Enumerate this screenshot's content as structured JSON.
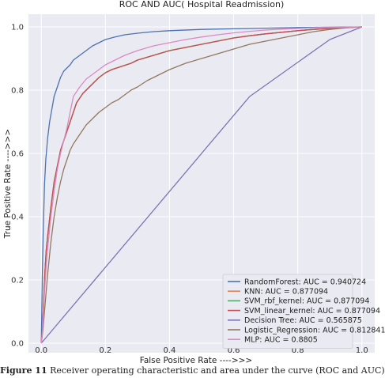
{
  "caption": {
    "prefix": "Figure 11",
    "text": "Receiver operating characteristic and area under the curve (ROC and AUC)"
  },
  "chart_data": {
    "type": "line",
    "title": "ROC AND AUC( Hospital Readmission)",
    "xlabel": "False Positive Rate ---->>>",
    "ylabel": "True Positive Rate ---->>>",
    "xlim": [
      -0.04,
      1.04
    ],
    "ylim": [
      -0.03,
      1.04
    ],
    "xticks": [
      "0.0",
      "0.2",
      "0.4",
      "0.6",
      "0.8",
      "1.0"
    ],
    "yticks": [
      "0.0",
      "0.2",
      "0.4",
      "0.6",
      "0.8",
      "1.0"
    ],
    "grid": true,
    "legend_position": "lower-right",
    "series": [
      {
        "name": "RandomForest: AUC = 0.940724",
        "color": "#4c72b0",
        "x": [
          0,
          0.003,
          0.006,
          0.01,
          0.014,
          0.02,
          0.026,
          0.033,
          0.04,
          0.05,
          0.06,
          0.07,
          0.08,
          0.09,
          0.1,
          0.12,
          0.14,
          0.16,
          0.18,
          0.2,
          0.23,
          0.26,
          0.3,
          0.35,
          0.4,
          0.5,
          0.6,
          0.7,
          0.8,
          0.9,
          1.0
        ],
        "y": [
          0,
          0.2,
          0.35,
          0.5,
          0.58,
          0.65,
          0.7,
          0.74,
          0.78,
          0.81,
          0.84,
          0.86,
          0.87,
          0.88,
          0.895,
          0.91,
          0.925,
          0.94,
          0.95,
          0.96,
          0.968,
          0.975,
          0.98,
          0.985,
          0.988,
          0.992,
          0.994,
          0.996,
          0.998,
          0.999,
          1.0
        ]
      },
      {
        "name": "KNN: AUC = 0.877094",
        "color": "#dd8452",
        "x": [
          0,
          0.003,
          0.006,
          0.01,
          0.015,
          0.02,
          0.03,
          0.04,
          0.05,
          0.06,
          0.07,
          0.08,
          0.09,
          0.1,
          0.11,
          0.13,
          0.15,
          0.18,
          0.2,
          0.22,
          0.25,
          0.28,
          0.3,
          0.35,
          0.4,
          0.45,
          0.5,
          0.55,
          0.6,
          0.65,
          0.7,
          0.75,
          0.8,
          0.85,
          0.9,
          0.95,
          1.0
        ],
        "y": [
          0,
          0.03,
          0.1,
          0.2,
          0.29,
          0.34,
          0.43,
          0.51,
          0.56,
          0.61,
          0.64,
          0.67,
          0.7,
          0.73,
          0.76,
          0.79,
          0.81,
          0.84,
          0.855,
          0.865,
          0.875,
          0.885,
          0.895,
          0.91,
          0.925,
          0.935,
          0.945,
          0.955,
          0.965,
          0.972,
          0.978,
          0.983,
          0.988,
          0.992,
          0.995,
          0.998,
          1.0
        ]
      },
      {
        "name": "SVM_rbf_kernel: AUC = 0.877094",
        "color": "#55a868",
        "x": [
          0,
          0.003,
          0.006,
          0.01,
          0.015,
          0.02,
          0.03,
          0.04,
          0.05,
          0.06,
          0.07,
          0.08,
          0.09,
          0.1,
          0.11,
          0.13,
          0.15,
          0.18,
          0.2,
          0.22,
          0.25,
          0.28,
          0.3,
          0.35,
          0.4,
          0.45,
          0.5,
          0.55,
          0.6,
          0.65,
          0.7,
          0.75,
          0.8,
          0.85,
          0.9,
          0.95,
          1.0
        ],
        "y": [
          0,
          0.03,
          0.1,
          0.2,
          0.29,
          0.34,
          0.43,
          0.51,
          0.56,
          0.61,
          0.64,
          0.67,
          0.7,
          0.73,
          0.76,
          0.79,
          0.81,
          0.84,
          0.855,
          0.865,
          0.875,
          0.885,
          0.895,
          0.91,
          0.925,
          0.935,
          0.945,
          0.955,
          0.965,
          0.972,
          0.978,
          0.983,
          0.988,
          0.992,
          0.995,
          0.998,
          1.0
        ]
      },
      {
        "name": "SVM_linear_kernel: AUC = 0.877094",
        "color": "#c44e52",
        "x": [
          0,
          0.003,
          0.006,
          0.01,
          0.015,
          0.02,
          0.03,
          0.04,
          0.05,
          0.06,
          0.07,
          0.08,
          0.09,
          0.1,
          0.11,
          0.13,
          0.15,
          0.18,
          0.2,
          0.22,
          0.25,
          0.28,
          0.3,
          0.35,
          0.4,
          0.45,
          0.5,
          0.55,
          0.6,
          0.65,
          0.7,
          0.75,
          0.8,
          0.85,
          0.9,
          0.95,
          1.0
        ],
        "y": [
          0,
          0.03,
          0.1,
          0.2,
          0.29,
          0.34,
          0.43,
          0.51,
          0.56,
          0.61,
          0.64,
          0.67,
          0.7,
          0.73,
          0.76,
          0.79,
          0.81,
          0.84,
          0.855,
          0.865,
          0.875,
          0.885,
          0.895,
          0.91,
          0.925,
          0.935,
          0.945,
          0.955,
          0.965,
          0.972,
          0.978,
          0.983,
          0.988,
          0.992,
          0.995,
          0.998,
          1.0
        ]
      },
      {
        "name": "Decision Tree: AUC = 0.565875",
        "color": "#8172b3",
        "x": [
          0,
          0.65,
          0.9,
          0.95,
          1.0
        ],
        "y": [
          0,
          0.78,
          0.96,
          0.98,
          1.0
        ]
      },
      {
        "name": "Logistic_Regression: AUC = 0.812841",
        "color": "#937860",
        "x": [
          0,
          0.005,
          0.01,
          0.02,
          0.03,
          0.04,
          0.05,
          0.06,
          0.07,
          0.08,
          0.09,
          0.1,
          0.12,
          0.14,
          0.16,
          0.18,
          0.2,
          0.22,
          0.24,
          0.26,
          0.28,
          0.3,
          0.33,
          0.36,
          0.4,
          0.45,
          0.5,
          0.55,
          0.6,
          0.65,
          0.7,
          0.75,
          0.8,
          0.85,
          0.9,
          0.95,
          1.0
        ],
        "y": [
          0,
          0.04,
          0.1,
          0.22,
          0.32,
          0.4,
          0.46,
          0.51,
          0.55,
          0.58,
          0.61,
          0.63,
          0.66,
          0.69,
          0.71,
          0.73,
          0.745,
          0.76,
          0.77,
          0.785,
          0.8,
          0.81,
          0.83,
          0.845,
          0.865,
          0.885,
          0.9,
          0.915,
          0.93,
          0.945,
          0.955,
          0.965,
          0.975,
          0.985,
          0.992,
          0.997,
          1.0
        ]
      },
      {
        "name": "MLP: AUC = 0.8805",
        "color": "#da8bc3",
        "x": [
          0,
          0.003,
          0.006,
          0.01,
          0.015,
          0.02,
          0.03,
          0.04,
          0.05,
          0.06,
          0.07,
          0.08,
          0.09,
          0.1,
          0.12,
          0.14,
          0.16,
          0.18,
          0.2,
          0.23,
          0.26,
          0.3,
          0.35,
          0.4,
          0.45,
          0.5,
          0.55,
          0.6,
          0.65,
          0.7,
          0.75,
          0.8,
          0.85,
          0.9,
          0.95,
          1.0
        ],
        "y": [
          0,
          0.03,
          0.08,
          0.16,
          0.24,
          0.3,
          0.4,
          0.48,
          0.55,
          0.6,
          0.64,
          0.68,
          0.73,
          0.78,
          0.81,
          0.835,
          0.85,
          0.865,
          0.88,
          0.895,
          0.91,
          0.925,
          0.94,
          0.95,
          0.96,
          0.968,
          0.975,
          0.981,
          0.986,
          0.99,
          0.993,
          0.995,
          0.997,
          0.998,
          0.999,
          1.0
        ]
      }
    ]
  }
}
